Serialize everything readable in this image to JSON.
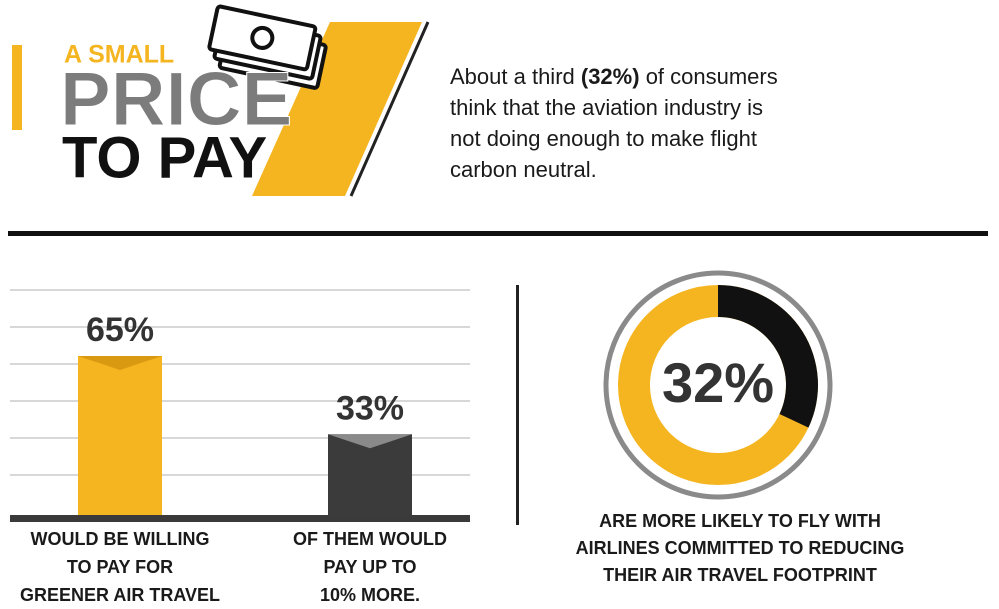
{
  "header": {
    "kicker": "A SMALL",
    "headline": "PRICE",
    "subhead": "TO PAY"
  },
  "statement": {
    "lead": "About a third",
    "highlight": "(32%)",
    "lines": [
      "of consumers",
      "think that the aviation industry is",
      "not doing enough to make flight",
      "carbon neutral."
    ]
  },
  "chart_data": [
    {
      "type": "bar",
      "categories": [
        [
          "WOULD BE WILLING",
          "TO PAY FOR",
          "GREENER AIR TRAVEL"
        ],
        [
          "OF THEM WOULD",
          "PAY UP TO",
          "10% MORE."
        ]
      ],
      "values": [
        65,
        33
      ],
      "value_labels": [
        "65%",
        "33%"
      ],
      "colors": [
        "#f5b521",
        "#3b3b3b"
      ],
      "ylim": [
        0,
        65
      ],
      "grid": true
    },
    {
      "type": "donut",
      "values": [
        32
      ],
      "value_labels": [
        "32%"
      ],
      "color": "#111111",
      "track_color": "#f5b521",
      "caption": [
        "ARE MORE LIKELY TO FLY WITH",
        "AIRLINES COMMITTED TO REDUCING",
        "THEIR AIR TRAVEL FOOTPRINT"
      ]
    }
  ]
}
